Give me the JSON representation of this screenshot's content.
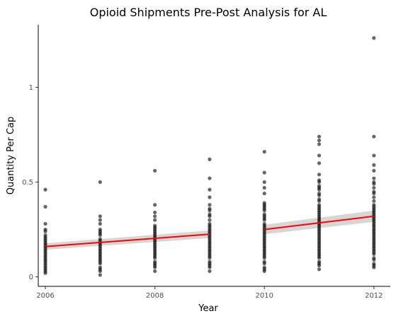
{
  "chart_data": {
    "type": "scatter",
    "title": "Opioid Shipments Pre-Post Analysis for AL",
    "xlabel": "Year",
    "ylabel": "Quantity Per Cap",
    "xlim": [
      2005.87,
      2012.3
    ],
    "ylim": [
      -0.05,
      1.33
    ],
    "x_ticks": [
      {
        "value": 2006,
        "label": "2006"
      },
      {
        "value": 2008,
        "label": "2008"
      },
      {
        "value": 2010,
        "label": "2010"
      },
      {
        "value": 2012,
        "label": "2012"
      }
    ],
    "y_ticks": [
      {
        "value": 0,
        "label": "0"
      },
      {
        "value": 0.5,
        "label": "0.5"
      },
      {
        "value": 1,
        "label": "1"
      }
    ],
    "grid": false,
    "point_color": "#000000",
    "point_opacity": 0.6,
    "line_color": "#ff0000",
    "band_color": "#c8c8c8",
    "points": {
      "2006": [
        0.46,
        0.37,
        0.28,
        0.25,
        0.24,
        0.22,
        0.21,
        0.2,
        0.19,
        0.18,
        0.17,
        0.16,
        0.15,
        0.14,
        0.13,
        0.12,
        0.11,
        0.1,
        0.09,
        0.08,
        0.07,
        0.06,
        0.05,
        0.04,
        0.03,
        0.02
      ],
      "2007": [
        0.5,
        0.32,
        0.3,
        0.28,
        0.25,
        0.24,
        0.23,
        0.22,
        0.2,
        0.19,
        0.18,
        0.17,
        0.16,
        0.15,
        0.14,
        0.13,
        0.12,
        0.11,
        0.1,
        0.09,
        0.08,
        0.07,
        0.05,
        0.04,
        0.03,
        0.01
      ],
      "2008": [
        0.56,
        0.38,
        0.34,
        0.32,
        0.3,
        0.27,
        0.26,
        0.25,
        0.24,
        0.23,
        0.22,
        0.21,
        0.2,
        0.19,
        0.18,
        0.17,
        0.16,
        0.15,
        0.14,
        0.13,
        0.12,
        0.11,
        0.1,
        0.08,
        0.07,
        0.06,
        0.05,
        0.03
      ],
      "2009": [
        0.62,
        0.52,
        0.46,
        0.42,
        0.38,
        0.36,
        0.35,
        0.33,
        0.32,
        0.3,
        0.28,
        0.27,
        0.26,
        0.25,
        0.24,
        0.23,
        0.22,
        0.21,
        0.2,
        0.19,
        0.18,
        0.17,
        0.16,
        0.15,
        0.14,
        0.13,
        0.12,
        0.11,
        0.1,
        0.08,
        0.07,
        0.06,
        0.05,
        0.03
      ],
      "2010": [
        0.66,
        0.55,
        0.5,
        0.47,
        0.44,
        0.39,
        0.38,
        0.37,
        0.36,
        0.35,
        0.33,
        0.32,
        0.31,
        0.3,
        0.28,
        0.27,
        0.26,
        0.25,
        0.24,
        0.23,
        0.22,
        0.21,
        0.2,
        0.19,
        0.18,
        0.17,
        0.16,
        0.15,
        0.14,
        0.13,
        0.12,
        0.11,
        0.1,
        0.08,
        0.07,
        0.05,
        0.04,
        0.03
      ],
      "2011": [
        0.74,
        0.72,
        0.7,
        0.64,
        0.6,
        0.54,
        0.51,
        0.5,
        0.48,
        0.47,
        0.46,
        0.44,
        0.43,
        0.41,
        0.4,
        0.38,
        0.37,
        0.36,
        0.35,
        0.34,
        0.33,
        0.32,
        0.31,
        0.3,
        0.29,
        0.28,
        0.27,
        0.26,
        0.25,
        0.24,
        0.23,
        0.22,
        0.21,
        0.2,
        0.19,
        0.18,
        0.17,
        0.16,
        0.15,
        0.14,
        0.13,
        0.12,
        0.11,
        0.1,
        0.08,
        0.07,
        0.06,
        0.04
      ],
      "2012": [
        1.26,
        0.74,
        0.64,
        0.59,
        0.56,
        0.52,
        0.5,
        0.49,
        0.47,
        0.45,
        0.44,
        0.42,
        0.4,
        0.38,
        0.37,
        0.36,
        0.35,
        0.34,
        0.33,
        0.32,
        0.31,
        0.3,
        0.29,
        0.28,
        0.27,
        0.26,
        0.25,
        0.24,
        0.23,
        0.22,
        0.21,
        0.2,
        0.19,
        0.18,
        0.17,
        0.16,
        0.15,
        0.14,
        0.13,
        0.12,
        0.1,
        0.09,
        0.07,
        0.06,
        0.05
      ]
    },
    "fit_lines": [
      {
        "x": [
          2006,
          2009
        ],
        "y": [
          0.16,
          0.225
        ],
        "ci_lower": [
          0.143,
          0.205
        ],
        "ci_upper": [
          0.177,
          0.245
        ]
      },
      {
        "x": [
          2010,
          2012
        ],
        "y": [
          0.25,
          0.32
        ],
        "ci_lower": [
          0.225,
          0.29
        ],
        "ci_upper": [
          0.275,
          0.35
        ]
      }
    ]
  }
}
